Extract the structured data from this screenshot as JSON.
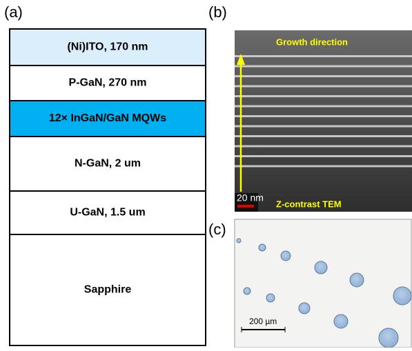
{
  "panel_a": {
    "label": "(a)",
    "layers": [
      "(Ni)ITO, 170 nm",
      "P-GaN, 270 nm",
      "12× InGaN/GaN MQWs",
      "N-GaN, 2 um",
      "U-GaN, 1.5 um",
      "Sapphire"
    ]
  },
  "panel_b": {
    "label": "(b)",
    "arrow_label": "Growth direction",
    "scale_bar": "20 nm",
    "caption": "Z-contrast TEM"
  },
  "panel_c": {
    "label": "(c)",
    "scale_bar": "200 µm"
  }
}
